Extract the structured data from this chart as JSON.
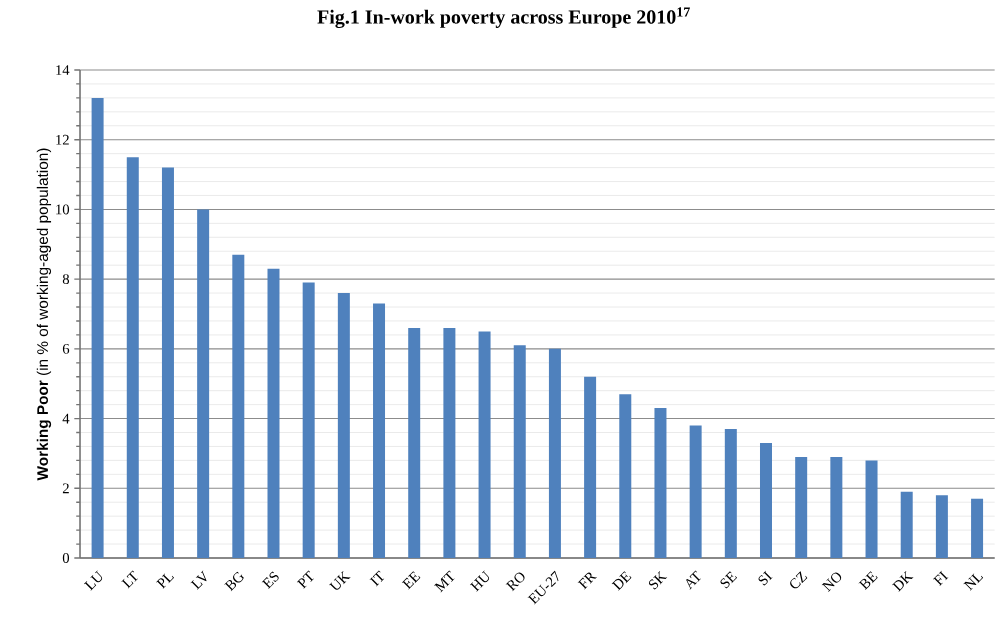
{
  "chart_data": {
    "type": "bar",
    "title": "Fig.1 In-work poverty across Europe 2010$^{17}$",
    "ylabel": "**Working Poor** (in % of working-aged population)",
    "categories": [
      "LU",
      "LT",
      "PL",
      "LV",
      "BG",
      "ES",
      "PT",
      "UK",
      "IT",
      "EE",
      "MT",
      "HU",
      "RO",
      "EU-27",
      "FR",
      "DE",
      "SK",
      "AT",
      "SE",
      "SI",
      "CZ",
      "NO",
      "BE",
      "DK",
      "FI",
      "NL"
    ],
    "values": [
      13.2,
      11.5,
      11.2,
      10.0,
      8.7,
      8.3,
      7.9,
      7.6,
      7.3,
      6.6,
      6.6,
      6.5,
      6.1,
      6.0,
      5.2,
      4.7,
      4.3,
      3.8,
      3.7,
      3.3,
      2.9,
      2.9,
      2.8,
      1.9,
      1.8,
      1.7
    ],
    "color": "#4f81bd",
    "ylim": [
      0,
      14
    ],
    "yticks": [
      0,
      2,
      4,
      6,
      8,
      10,
      12,
      14
    ],
    "grid": "y"
  }
}
